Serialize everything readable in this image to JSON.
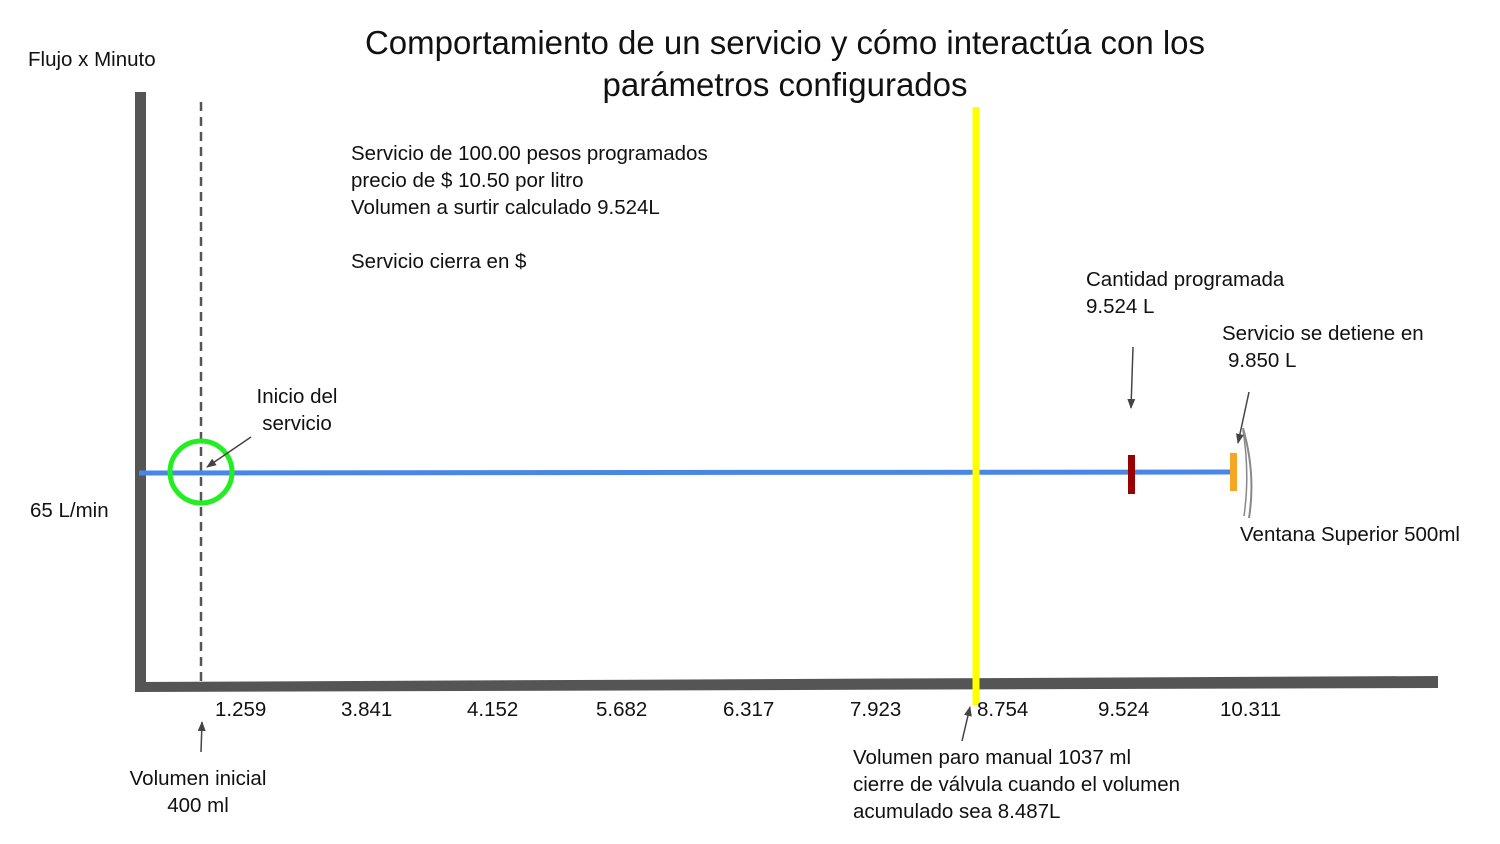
{
  "title_line1": "Comportamiento de un servicio y cómo interactúa con los",
  "title_line2": "parámetros configurados",
  "y_axis_label": "Flujo x Minuto",
  "flow_label": "65 L/min",
  "info": {
    "line1": "Servicio de 100.00 pesos programados",
    "line2": "precio de $ 10.50 por litro",
    "line3": "Volumen a surtir calculado 9.524L",
    "line4": "Servicio cierra en $"
  },
  "start_label": {
    "line1": "Inicio del",
    "line2": "servicio"
  },
  "initial_volume": {
    "line1": "Volumen inicial",
    "line2": "400 ml"
  },
  "programmed": {
    "line1": "Cantidad programada",
    "line2": "9.524 L"
  },
  "stop": {
    "line1": "Servicio se detiene en",
    "line2": "9.850 L"
  },
  "window_label": "Ventana Superior 500ml",
  "manual_stop": {
    "line1": "Volumen paro manual 1037 ml",
    "line2": "cierre de válvula cuando el volumen",
    "line3": "acumulado sea 8.487L"
  },
  "ticks": [
    "1.259",
    "3.841",
    "4.152",
    "5.682",
    "6.317",
    "7.923",
    "8.754",
    "9.524",
    "10.311"
  ],
  "colors": {
    "axis": "#555555",
    "flow_line": "#4a86e8",
    "start_circle": "#22ee22",
    "manual_stop_line": "#ffff00",
    "programmed_marker": "#990000",
    "stop_marker": "#f5a623"
  }
}
